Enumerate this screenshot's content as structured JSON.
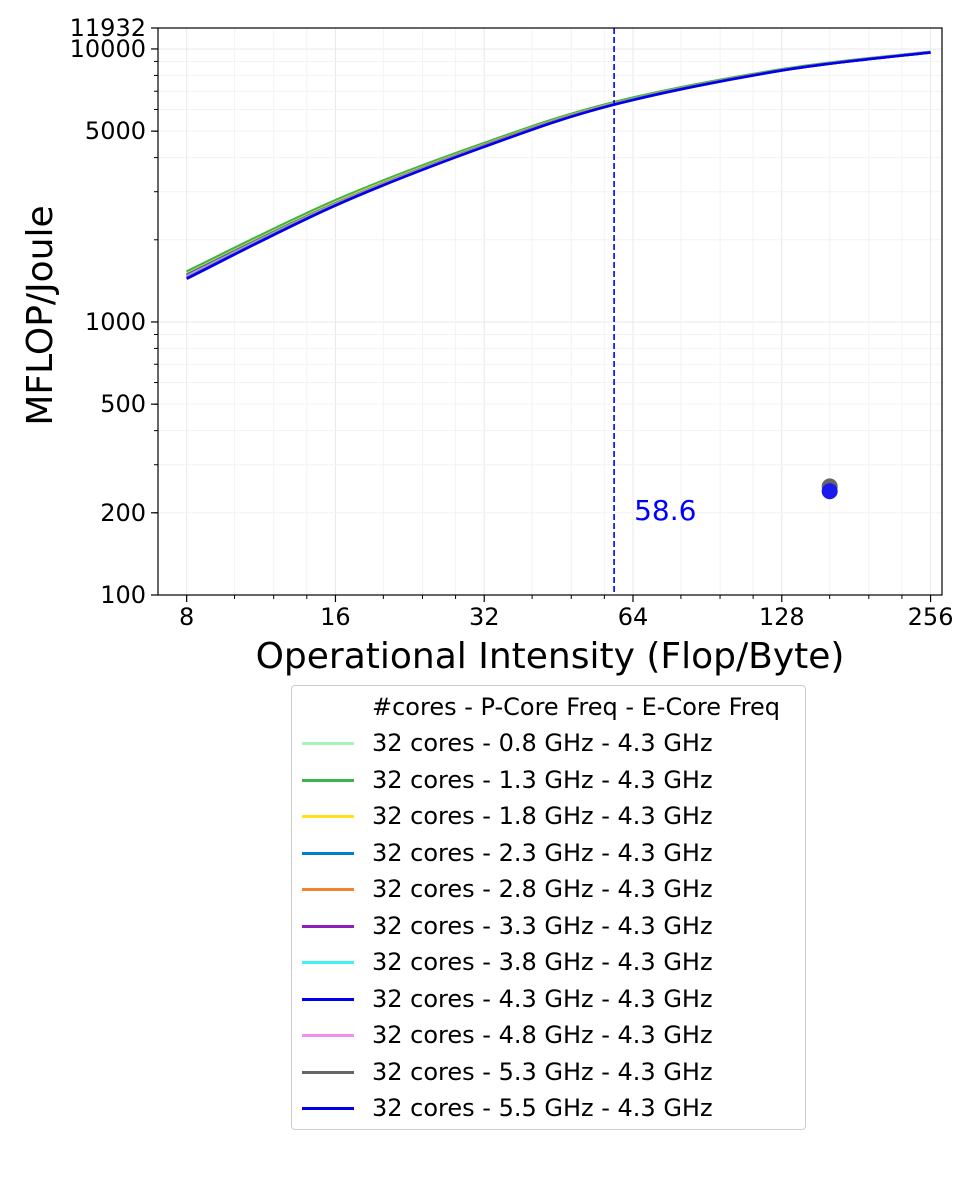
{
  "chart_data": {
    "type": "line",
    "title": "",
    "xlabel": "Operational Intensity (Flop/Byte)",
    "ylabel": "MFLOP/Joule",
    "x_scale": "log2",
    "y_scale": "log10",
    "xlim": [
      7.0,
      270
    ],
    "ylim": [
      100,
      11932
    ],
    "x_ticks": [
      8,
      16,
      32,
      64,
      128,
      256
    ],
    "x_tick_labels": [
      "8",
      "16",
      "32",
      "64",
      "128",
      "256"
    ],
    "y_ticks": [
      100,
      200,
      500,
      1000,
      5000,
      10000,
      11932
    ],
    "y_tick_labels": [
      "100",
      "200",
      "500",
      "1000",
      "5000",
      "10000",
      "11932"
    ],
    "grid": true,
    "vline": {
      "x": 58.6,
      "label": "58.6",
      "color": "#0000ff",
      "style": "dashed"
    },
    "points": [
      {
        "x": 160,
        "y": 250,
        "color": "#666666"
      },
      {
        "x": 160,
        "y": 240,
        "color": "#1a1aee"
      }
    ],
    "legend": {
      "placement": "below",
      "title": "#cores - P-Core Freq - E-Core Freq"
    },
    "series": [
      {
        "name": "32 cores - 0.8 GHz - 4.3 GHz",
        "color": "#a6f5b8",
        "x": [
          8,
          16,
          32,
          58.6,
          128,
          256
        ],
        "y": [
          1530,
          2790,
          4520,
          6380,
          8420,
          9760
        ]
      },
      {
        "name": "32 cores - 1.3 GHz - 4.3 GHz",
        "color": "#3cb44b",
        "x": [
          8,
          16,
          32,
          58.6,
          128,
          256
        ],
        "y": [
          1530,
          2790,
          4520,
          6380,
          8420,
          9760
        ]
      },
      {
        "name": "32 cores - 1.8 GHz - 4.3 GHz",
        "color": "#ffe119",
        "x": [
          8,
          16,
          32,
          58.6,
          128,
          256
        ],
        "y": [
          1500,
          2740,
          4460,
          6320,
          8380,
          9740
        ]
      },
      {
        "name": "32 cores - 2.3 GHz - 4.3 GHz",
        "color": "#0082c8",
        "x": [
          8,
          16,
          32,
          58.6,
          128,
          256
        ],
        "y": [
          1490,
          2720,
          4440,
          6300,
          8370,
          9730
        ]
      },
      {
        "name": "32 cores - 2.8 GHz - 4.3 GHz",
        "color": "#f58231",
        "x": [
          8,
          16,
          32,
          58.6,
          128,
          256
        ],
        "y": [
          1480,
          2710,
          4430,
          6290,
          8360,
          9730
        ]
      },
      {
        "name": "32 cores - 3.3 GHz - 4.3 GHz",
        "color": "#911eb4",
        "x": [
          8,
          16,
          32,
          58.6,
          128,
          256
        ],
        "y": [
          1480,
          2700,
          4420,
          6280,
          8360,
          9720
        ]
      },
      {
        "name": "32 cores - 3.8 GHz - 4.3 GHz",
        "color": "#46f0f0",
        "x": [
          8,
          16,
          32,
          58.6,
          128,
          256
        ],
        "y": [
          1470,
          2700,
          4410,
          6280,
          8350,
          9720
        ]
      },
      {
        "name": "32 cores - 4.3 GHz - 4.3 GHz",
        "color": "#0000ee",
        "x": [
          8,
          16,
          32,
          58.6,
          128,
          256
        ],
        "y": [
          1460,
          2690,
          4400,
          6270,
          8350,
          9720
        ]
      },
      {
        "name": "32 cores - 4.8 GHz - 4.3 GHz",
        "color": "#f58cf0",
        "x": [
          8,
          16,
          32,
          58.6,
          128,
          256
        ],
        "y": [
          1460,
          2690,
          4400,
          6270,
          8350,
          9720
        ]
      },
      {
        "name": "32 cores - 5.3 GHz - 4.3 GHz",
        "color": "#666666",
        "x": [
          8,
          16,
          32,
          58.6,
          128,
          256
        ],
        "y": [
          1450,
          2680,
          4390,
          6260,
          8340,
          9710
        ]
      },
      {
        "name": "32 cores - 5.5 GHz - 4.3 GHz",
        "color": "#0000ee",
        "x": [
          8,
          16,
          32,
          58.6,
          128,
          256
        ],
        "y": [
          1440,
          2670,
          4380,
          6250,
          8340,
          9710
        ]
      }
    ]
  }
}
